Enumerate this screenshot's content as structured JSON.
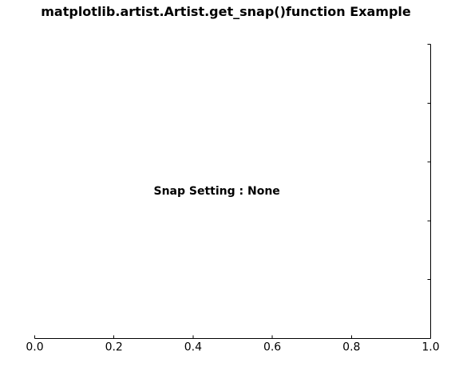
{
  "chart_data": {
    "type": "scatter",
    "title": "matplotlib.artist.Artist.get_snap()function Example",
    "xlabel": "",
    "ylabel": "",
    "xlim": [
      0.0,
      1.0
    ],
    "ylim": [
      0.0,
      1.0
    ],
    "x_ticks": [
      0.0,
      0.2,
      0.4,
      0.6,
      0.8,
      1.0
    ],
    "x_tick_labels": [
      "0.0",
      "0.2",
      "0.4",
      "0.6",
      "0.8",
      "1.0"
    ],
    "y_ticks": [
      0.0,
      0.2,
      0.4,
      0.6,
      0.8,
      1.0
    ],
    "y_tick_labels": [],
    "visible_spines": [
      "bottom",
      "right"
    ],
    "grid": false,
    "series": [],
    "annotations": [
      {
        "text": "Snap Setting : None",
        "x": 0.46,
        "y": 0.5
      }
    ]
  }
}
